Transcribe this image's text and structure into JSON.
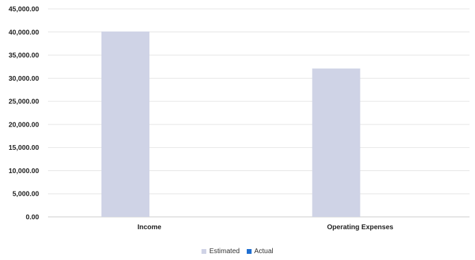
{
  "chart_data": {
    "type": "bar",
    "categories": [
      "Income",
      "Operating Expenses"
    ],
    "series": [
      {
        "name": "Estimated",
        "values": [
          40100,
          32100
        ],
        "color": "#cfd3e6"
      },
      {
        "name": "Actual",
        "values": [
          0,
          0
        ],
        "color": "#1f6fd1"
      }
    ],
    "yticks": [
      "0.00",
      "5,000.00",
      "10,000.00",
      "15,000.00",
      "20,000.00",
      "25,000.00",
      "30,000.00",
      "35,000.00",
      "40,000.00",
      "45,000.00"
    ],
    "ylim": [
      0,
      45000
    ],
    "grid": true,
    "legend_position": "bottom"
  }
}
